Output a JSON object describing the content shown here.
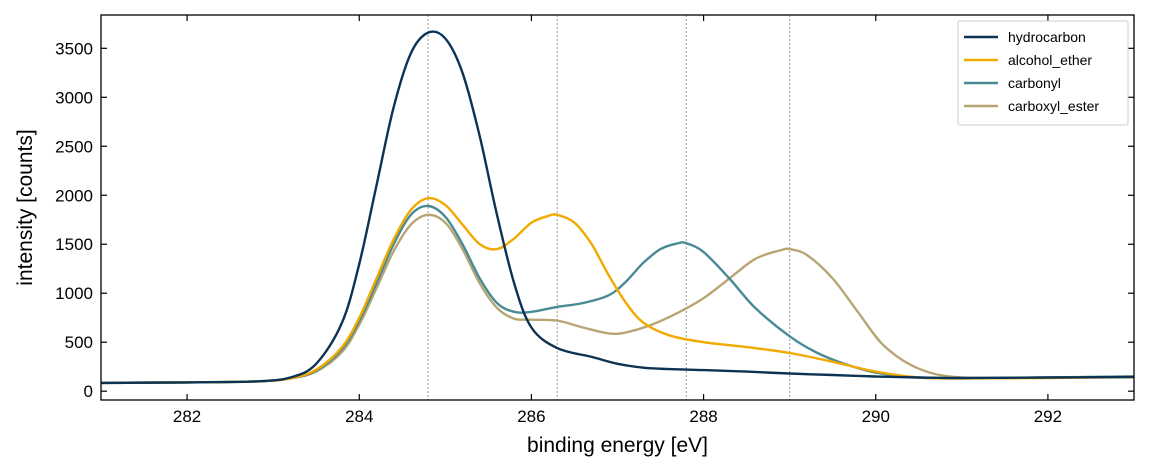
{
  "chart_data": {
    "type": "line",
    "xlabel": "binding energy [eV]",
    "ylabel": "intensity [counts]",
    "xlim": [
      281,
      293
    ],
    "ylim": [
      -90,
      3840
    ],
    "xticks": [
      282,
      284,
      286,
      288,
      290,
      292
    ],
    "yticks": [
      0,
      500,
      1000,
      1500,
      2000,
      2500,
      3000,
      3500
    ],
    "reference_lines_x": [
      284.8,
      286.3,
      287.8,
      289.0
    ],
    "legend_position": "top-right",
    "grid": false,
    "series": [
      {
        "name": "hydrocarbon",
        "color": "#0c3354",
        "x": [
          281.0,
          282.0,
          282.8,
          283.2,
          283.5,
          283.8,
          284.0,
          284.2,
          284.4,
          284.6,
          284.8,
          285.0,
          285.2,
          285.4,
          285.6,
          285.8,
          286.0,
          286.3,
          286.7,
          287.0,
          287.3,
          287.6,
          288.0,
          288.5,
          289.0,
          289.5,
          290.0,
          290.5,
          291.0,
          292.0,
          293.0
        ],
        "y": [
          85,
          90,
          100,
          140,
          280,
          700,
          1300,
          2100,
          2900,
          3450,
          3660,
          3600,
          3250,
          2600,
          1800,
          1100,
          650,
          440,
          350,
          280,
          240,
          225,
          215,
          200,
          180,
          165,
          150,
          140,
          135,
          140,
          145
        ]
      },
      {
        "name": "alcohol_ether",
        "color": "#f2a900",
        "x": [
          281.0,
          282.0,
          282.8,
          283.2,
          283.5,
          283.8,
          284.0,
          284.2,
          284.4,
          284.6,
          284.8,
          285.0,
          285.2,
          285.4,
          285.6,
          285.8,
          286.0,
          286.2,
          286.3,
          286.5,
          286.7,
          286.9,
          287.1,
          287.3,
          287.6,
          288.0,
          288.5,
          289.0,
          289.5,
          290.0,
          290.5,
          291.0,
          292.0,
          293.0
        ],
        "y": [
          85,
          90,
          100,
          130,
          220,
          450,
          750,
          1150,
          1550,
          1850,
          1970,
          1900,
          1700,
          1500,
          1450,
          1560,
          1720,
          1790,
          1800,
          1720,
          1500,
          1180,
          900,
          700,
          570,
          500,
          450,
          390,
          300,
          200,
          140,
          130,
          135,
          145
        ]
      },
      {
        "name": "carbonyl",
        "color": "#4a8a96",
        "x": [
          281.0,
          282.0,
          282.8,
          283.2,
          283.5,
          283.8,
          284.0,
          284.2,
          284.4,
          284.6,
          284.8,
          285.0,
          285.2,
          285.4,
          285.6,
          285.8,
          286.0,
          286.3,
          286.6,
          286.9,
          287.1,
          287.3,
          287.5,
          287.7,
          287.8,
          288.0,
          288.3,
          288.6,
          289.0,
          289.3,
          289.6,
          290.0,
          290.5,
          291.0,
          292.0,
          293.0
        ],
        "y": [
          85,
          90,
          100,
          130,
          210,
          430,
          720,
          1100,
          1500,
          1800,
          1890,
          1780,
          1500,
          1150,
          900,
          810,
          810,
          860,
          900,
          980,
          1120,
          1310,
          1450,
          1510,
          1510,
          1420,
          1150,
          850,
          560,
          400,
          290,
          190,
          140,
          130,
          140,
          150
        ]
      },
      {
        "name": "carboxyl_ester",
        "color": "#b8a574",
        "x": [
          281.0,
          282.0,
          282.8,
          283.2,
          283.5,
          283.8,
          284.0,
          284.2,
          284.4,
          284.6,
          284.8,
          285.0,
          285.2,
          285.4,
          285.6,
          285.8,
          286.0,
          286.3,
          286.6,
          286.9,
          287.1,
          287.4,
          287.7,
          288.0,
          288.3,
          288.6,
          288.9,
          289.0,
          289.2,
          289.5,
          289.8,
          290.1,
          290.5,
          291.0,
          292.0,
          293.0
        ],
        "y": [
          85,
          90,
          100,
          130,
          200,
          400,
          680,
          1050,
          1430,
          1700,
          1800,
          1720,
          1450,
          1100,
          850,
          740,
          730,
          720,
          650,
          590,
          600,
          680,
          800,
          950,
          1150,
          1350,
          1440,
          1450,
          1390,
          1150,
          800,
          460,
          230,
          140,
          140,
          150
        ]
      }
    ]
  }
}
